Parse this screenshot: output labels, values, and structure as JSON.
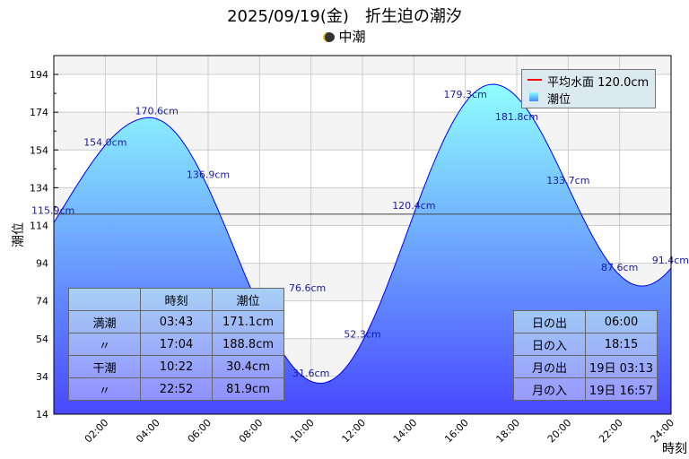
{
  "title": "2025/09/19(金)　折生迫の潮汐",
  "subtitle": "中潮",
  "legend": {
    "mean": "平均水面 120.0cm",
    "tide": "潮位"
  },
  "colors": {
    "mean_line": "#ff0000",
    "curve": "#0000ff",
    "fill_top": "#90ffff",
    "fill_bottom": "#4848ff"
  },
  "chart_data": {
    "type": "area",
    "xlabel": "時刻",
    "ylabel": "潮位",
    "xlim": [
      0,
      24
    ],
    "ylim": [
      14,
      204
    ],
    "yticks": [
      14,
      34,
      54,
      74,
      94,
      114,
      134,
      154,
      174,
      194
    ],
    "xticks": [
      "02:00",
      "04:00",
      "06:00",
      "08:00",
      "10:00",
      "12:00",
      "14:00",
      "16:00",
      "18:00",
      "20:00",
      "22:00",
      "24:00"
    ],
    "mean_level": 120.0,
    "extrema": [
      {
        "t": 3.717,
        "v": 171.1
      },
      {
        "t": 10.367,
        "v": 30.4
      },
      {
        "t": 17.067,
        "v": 188.8
      },
      {
        "t": 22.867,
        "v": 81.9
      }
    ],
    "hourly_labels": [
      {
        "t": 0,
        "v": 115.9,
        "text": "115.9cm"
      },
      {
        "t": 2,
        "v": 154.0,
        "text": "154.0cm"
      },
      {
        "t": 4,
        "v": 170.6,
        "text": "170.6cm"
      },
      {
        "t": 6,
        "v": 136.9,
        "text": "136.9cm"
      },
      {
        "t": 8,
        "v": 76.6,
        "text": "76.6cm"
      },
      {
        "t": 10,
        "v": 31.6,
        "text": "31.6cm"
      },
      {
        "t": 12,
        "v": 52.3,
        "text": "52.3cm"
      },
      {
        "t": 14,
        "v": 120.4,
        "text": "120.4cm"
      },
      {
        "t": 16,
        "v": 179.3,
        "text": "179.3cm"
      },
      {
        "t": 18,
        "v": 181.8,
        "text": "181.8cm"
      },
      {
        "t": 20,
        "v": 133.7,
        "text": "133.7cm"
      },
      {
        "t": 22,
        "v": 87.6,
        "text": "87.6cm"
      },
      {
        "t": 24,
        "v": 91.4,
        "text": "91.4cm"
      }
    ]
  },
  "tide_table": {
    "header": [
      "",
      "時刻",
      "潮位"
    ],
    "rows": [
      [
        "満潮",
        "03:43",
        "171.1cm"
      ],
      [
        "〃",
        "17:04",
        "188.8cm"
      ],
      [
        "干潮",
        "10:22",
        "30.4cm"
      ],
      [
        "〃",
        "22:52",
        "81.9cm"
      ]
    ]
  },
  "sun_table": {
    "rows": [
      [
        "日の出",
        "06:00"
      ],
      [
        "日の入",
        "18:15"
      ],
      [
        "月の出",
        "19日 03:13"
      ],
      [
        "月の入",
        "19日 16:57"
      ]
    ]
  }
}
